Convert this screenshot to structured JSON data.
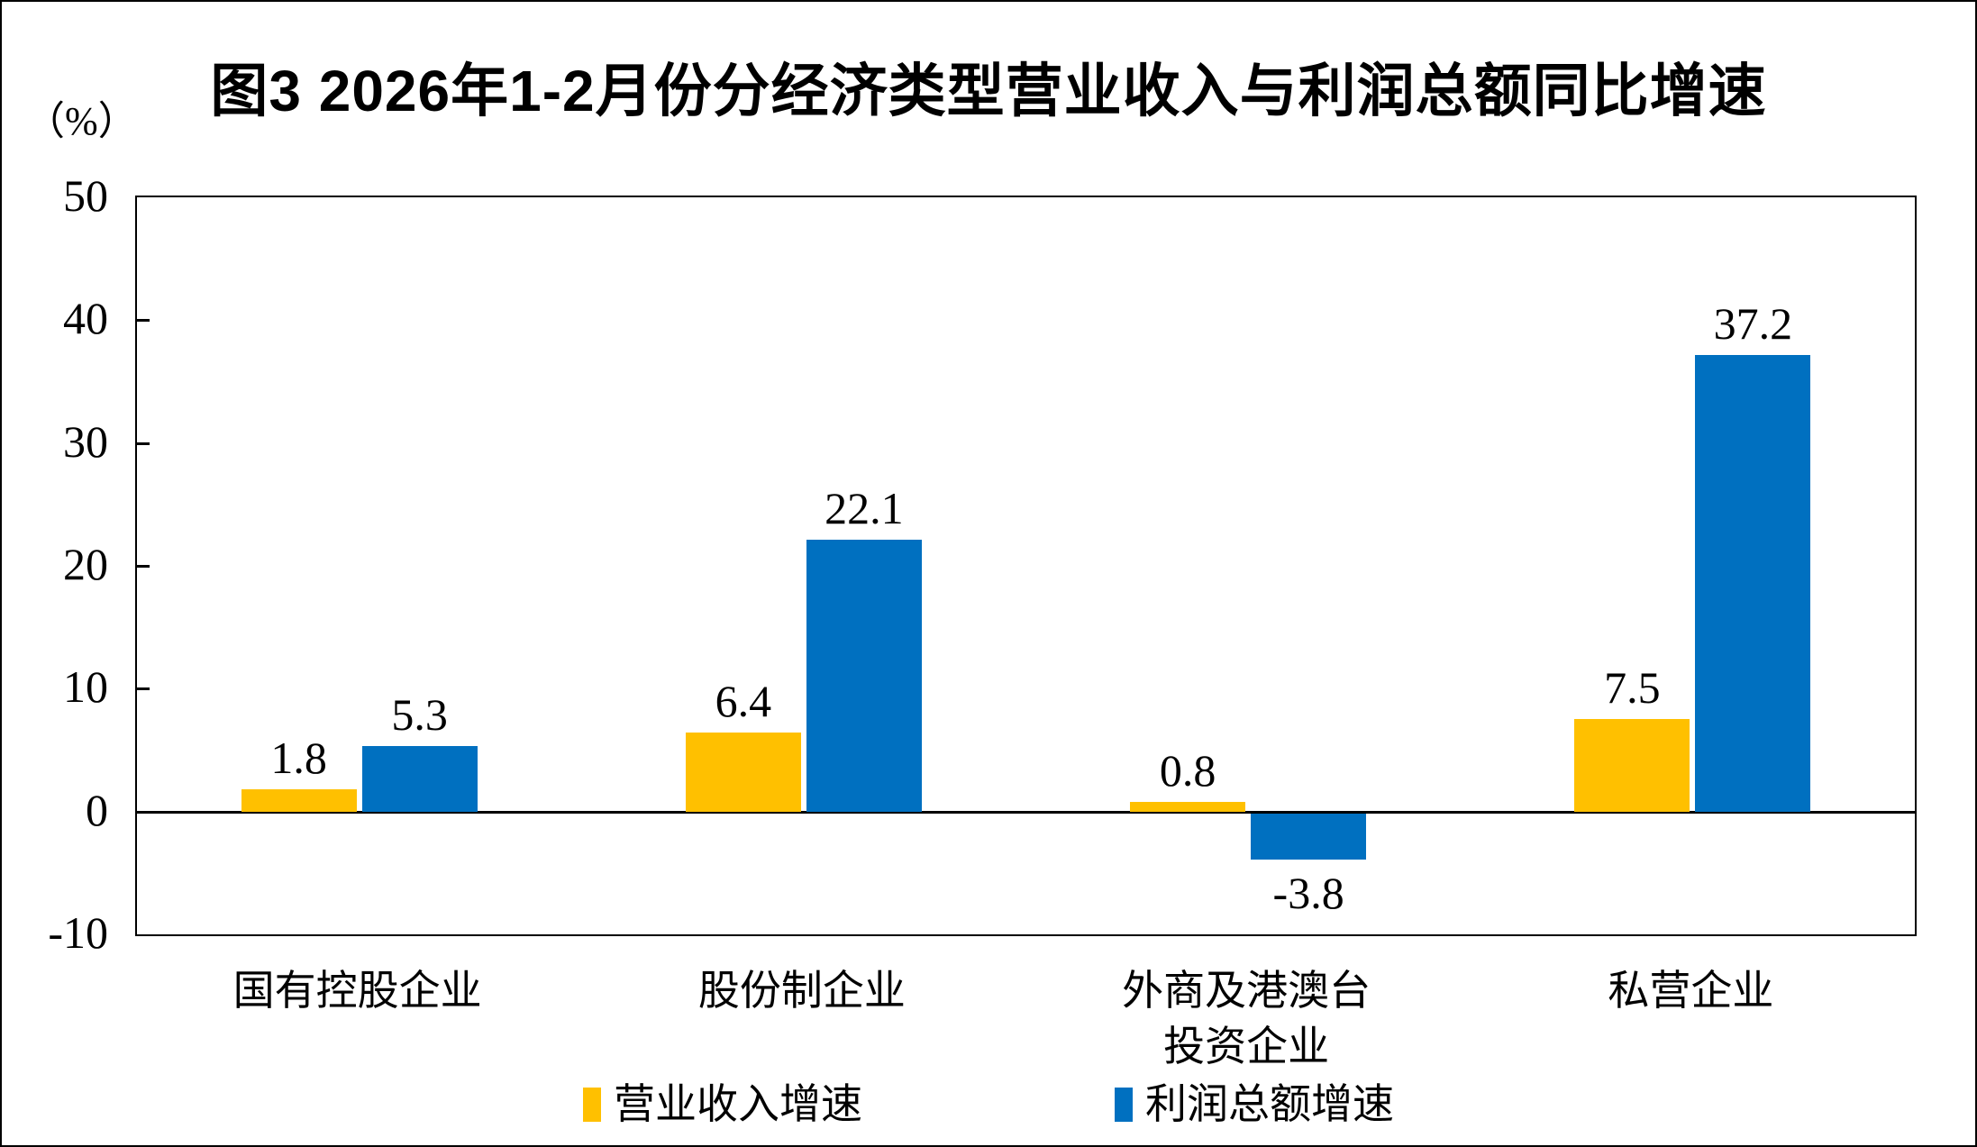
{
  "title": "图3 2026年1-2月份分经济类型营业收入与利润总额同比增速",
  "unit_label": "（%）",
  "chart_data": {
    "type": "bar",
    "categories": [
      "国有控股企业",
      "股份制企业",
      "外商及港澳台\n投资企业",
      "私营企业"
    ],
    "series": [
      {
        "name": "营业收入增速",
        "color": "#FFC000",
        "values": [
          1.8,
          6.4,
          0.8,
          7.5
        ]
      },
      {
        "name": "利润总额增速",
        "color": "#0070C0",
        "values": [
          5.3,
          22.1,
          -3.8,
          37.2
        ]
      }
    ],
    "ylim": [
      -10,
      50
    ],
    "yticks": [
      50,
      40,
      30,
      20,
      10,
      0,
      -10
    ],
    "ylabel": "（%）",
    "grid": false,
    "legend_position": "bottom",
    "value_labels_shown": true,
    "axis_color": "#000000",
    "background_color": "#ffffff"
  }
}
